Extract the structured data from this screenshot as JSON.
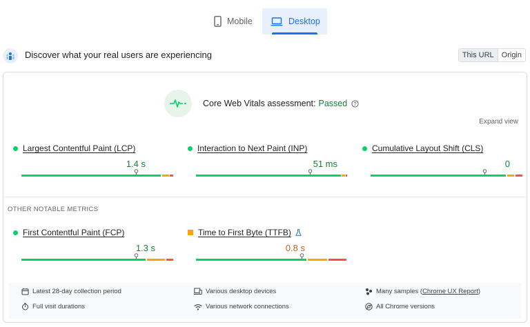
{
  "tabs": [
    {
      "label": "Mobile",
      "active": false,
      "icon": "phone-icon"
    },
    {
      "label": "Desktop",
      "active": true,
      "icon": "laptop-icon"
    }
  ],
  "header": {
    "title": "Discover what your real users are experiencing",
    "toggle": [
      "This URL",
      "Origin"
    ],
    "selected": "This URL"
  },
  "assessment": {
    "prefix": "Core Web Vitals assessment:",
    "status": "Passed",
    "expand_label": "Expand view"
  },
  "core_metrics": [
    {
      "label": "Largest Contentful Paint (LCP)",
      "value": "1.4 s",
      "status": "good"
    },
    {
      "label": "Interaction to Next Paint (INP)",
      "value": "51 ms",
      "status": "good"
    },
    {
      "label": "Cumulative Layout Shift (CLS)",
      "value": "0",
      "status": "good"
    }
  ],
  "other_heading": "OTHER NOTABLE METRICS",
  "other_metrics": [
    {
      "label": "First Contentful Paint (FCP)",
      "value": "1.3 s",
      "status": "good"
    },
    {
      "label": "Time to First Byte (TTFB)",
      "value": "0.8 s",
      "status": "needs-improvement",
      "experimental_icon": "flask-icon"
    }
  ],
  "footer": {
    "items": [
      {
        "icon": "calendar-icon",
        "text": "Latest 28-day collection period"
      },
      {
        "icon": "devices-icon",
        "text": "Various desktop devices"
      },
      {
        "icon": "samples-icon",
        "text_prefix": "Many samples (",
        "link": "Chrome UX Report",
        "text_suffix": ")"
      },
      {
        "icon": "timer-icon",
        "text": "Full visit durations"
      },
      {
        "icon": "wifi-icon",
        "text": "Various network connections"
      },
      {
        "icon": "chrome-icon",
        "text": "All Chrome versions"
      }
    ]
  },
  "colors": {
    "good": "#0cce6b",
    "needs_improvement": "#ffa400",
    "poor": "#ff4e42",
    "accent": "#1a73e8"
  }
}
